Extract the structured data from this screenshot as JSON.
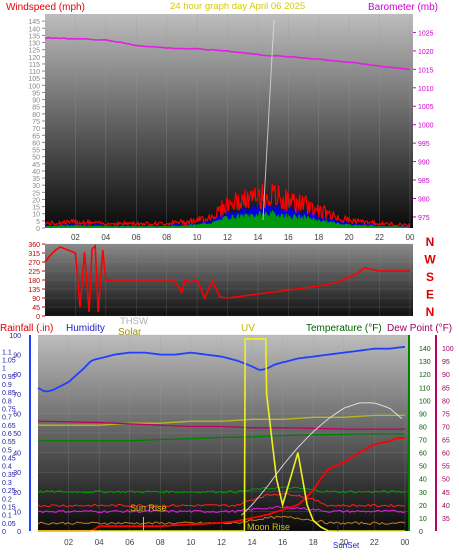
{
  "header": {
    "left_title": "Windspeed (mph)",
    "center_title": "24 hour graph day   April 06 2025",
    "right_title": "Barometer (mb)"
  },
  "bottom_header": {
    "rainfall": "Rainfall (.in)",
    "humidity": "Humidity",
    "thsw": "THSW",
    "solar": "Solar",
    "uv": "UV",
    "temperature": "Temperature (°F)",
    "dewpoint": "Dew Point (°F)"
  },
  "direction_letters": [
    "N",
    "W",
    "S",
    "E",
    "N"
  ],
  "annotations": {
    "sunrise": "Sun Rise",
    "moonrise": "Moon Rise",
    "sunset": "SunSet"
  },
  "colors": {
    "wind": "#ff0000",
    "gust_blue": "#0000ff",
    "gust_green": "#00a000",
    "barometer": "#e020e0",
    "direction": "#ff0000",
    "humidity": "#2040ff",
    "uv": "#f0f020",
    "solar": "#b8b820",
    "temperature": "#008000",
    "dewpoint": "#c00060",
    "rain": "#ff0000",
    "thsw": "#ffffff"
  },
  "chart_data": [
    {
      "type": "line",
      "id": "wind_baro",
      "title": "24 hour graph day   April 06 2025",
      "x_ticks": [
        "02",
        "04",
        "06",
        "08",
        "10",
        "12",
        "14",
        "16",
        "18",
        "20",
        "22",
        "00"
      ],
      "x_range_hours": [
        0,
        24.2
      ],
      "left_axis": {
        "label": "Windspeed (mph)",
        "ticks": [
          0,
          5,
          10,
          15,
          20,
          25,
          30,
          35,
          40,
          45,
          50,
          55,
          60,
          65,
          70,
          75,
          80,
          85,
          90,
          95,
          100,
          105,
          110,
          115,
          120,
          125,
          130,
          135,
          140,
          145
        ],
        "range": [
          0,
          150
        ]
      },
      "right_axis": {
        "label": "Barometer (mb)",
        "ticks": [
          975,
          980,
          985,
          990,
          995,
          1000,
          1005,
          1010,
          1015,
          1020,
          1025
        ],
        "range": [
          972,
          1030
        ]
      },
      "series": [
        {
          "name": "Barometer",
          "x": [
            0,
            2,
            4,
            6,
            8,
            10,
            12,
            14,
            16,
            18,
            20,
            22,
            24
          ],
          "values": [
            1023.5,
            1023.3,
            1023,
            1021.5,
            1020.8,
            1020.5,
            1020,
            1019,
            1018.4,
            1017.8,
            1016.9,
            1015.9,
            1015
          ]
        },
        {
          "name": "Wind",
          "x": [
            0,
            2,
            4,
            6,
            8,
            10,
            11,
            12,
            13,
            14,
            14.5,
            15,
            15.5,
            16,
            17,
            18,
            19,
            20,
            22,
            24
          ],
          "values": [
            3,
            4,
            3,
            3,
            3,
            5,
            8,
            16,
            18,
            20,
            22,
            21,
            20,
            18,
            16,
            12,
            8,
            5,
            3,
            2
          ]
        }
      ]
    },
    {
      "type": "line",
      "id": "direction",
      "x_range_hours": [
        0,
        24.2
      ],
      "y_ticks": [
        0,
        45,
        90,
        135,
        180,
        225,
        270,
        315,
        360
      ],
      "y_range": [
        0,
        360
      ],
      "series": [
        {
          "name": "Wind Direction",
          "x": [
            0,
            0.3,
            0.7,
            1,
            1.5,
            2,
            2.3,
            2.6,
            2.9,
            3.1,
            3.3,
            3.5,
            3.8,
            4,
            4.5,
            5.5,
            6.5,
            7.5,
            8.5,
            9,
            9.2,
            9.5,
            10,
            10.5,
            11,
            11.5,
            12,
            13,
            14,
            15,
            16,
            17,
            18,
            19,
            19.5,
            20,
            20.5,
            21,
            22,
            23,
            24
          ],
          "values": [
            270,
            300,
            330,
            345,
            330,
            315,
            45,
            320,
            20,
            335,
            350,
            20,
            330,
            180,
            175,
            175,
            175,
            175,
            175,
            120,
            180,
            170,
            180,
            90,
            175,
            95,
            90,
            100,
            110,
            120,
            130,
            140,
            150,
            165,
            175,
            195,
            210,
            240,
            225,
            225,
            225
          ]
        }
      ]
    },
    {
      "type": "line",
      "id": "climate",
      "x_ticks": [
        "02",
        "04",
        "06",
        "08",
        "10",
        "12",
        "14",
        "16",
        "18",
        "20",
        "22",
        "00"
      ],
      "x_range_hours": [
        0,
        24.2
      ],
      "humidity_axis": {
        "label": "Humidity",
        "ticks": [
          0,
          10,
          20,
          30,
          40,
          50,
          60,
          70,
          80,
          90,
          100
        ],
        "range": [
          0,
          100
        ]
      },
      "rain_axis": {
        "label": "Rainfall (.in)",
        "ticks": [
          0,
          0.05,
          0.1,
          0.15,
          0.2,
          0.25,
          0.3,
          0.35,
          0.4,
          0.45,
          0.5,
          0.55,
          0.6,
          0.65,
          0.7,
          0.75,
          0.8,
          0.85,
          0.9,
          0.95,
          1,
          1.05,
          1.1
        ],
        "range": [
          0,
          1.2
        ]
      },
      "uv_axis": {
        "ticks": [
          0,
          10,
          20,
          30,
          40,
          50,
          60,
          70,
          80,
          90,
          100,
          110,
          120,
          130,
          140
        ],
        "range": [
          0,
          150
        ]
      },
      "temp_axis": {
        "ticks": [
          35,
          40,
          45,
          50,
          55,
          60,
          65,
          70,
          75,
          80,
          85,
          90,
          95,
          100
        ],
        "range": [
          30,
          105
        ]
      },
      "series": [
        {
          "name": "Humidity",
          "x": [
            0,
            0.5,
            1,
            2,
            3,
            3.5,
            4,
            5,
            6,
            7,
            8,
            9,
            10,
            11,
            12,
            13,
            14,
            14.5,
            15,
            15.5,
            16,
            17,
            18,
            19,
            20,
            21,
            22,
            23,
            24
          ],
          "values": [
            73,
            71,
            72,
            76,
            83,
            87,
            88,
            90,
            91,
            91,
            90,
            90,
            91,
            90,
            89,
            87,
            84,
            82,
            83,
            85,
            86,
            88,
            89,
            90,
            91,
            92,
            93,
            93,
            94
          ]
        },
        {
          "name": "Temperature",
          "x": [
            0,
            2,
            4,
            6,
            8,
            10,
            12,
            14,
            16,
            18,
            20,
            22,
            24
          ],
          "values": [
            64.5,
            64.5,
            64.5,
            64.5,
            65,
            65.3,
            65.8,
            66,
            66.5,
            66.8,
            67,
            67.2,
            67.2
          ]
        },
        {
          "name": "Dew Point",
          "x": [
            0,
            2,
            4,
            6,
            8,
            10,
            12,
            14,
            16,
            18,
            20,
            22,
            24
          ],
          "values": [
            72,
            71.8,
            71.5,
            71,
            70.5,
            70,
            70,
            69.5,
            69.5,
            69.3,
            69,
            69,
            69
          ]
        },
        {
          "name": "Rain",
          "x": [
            0,
            2,
            3.5,
            4,
            6,
            8,
            10,
            12,
            13,
            14,
            15,
            16,
            17,
            17.5,
            18,
            18.5,
            19,
            20,
            21,
            22,
            23,
            23.5,
            24
          ],
          "values": [
            0,
            0,
            0,
            0.03,
            0.03,
            0.03,
            0.04,
            0.05,
            0.06,
            0.08,
            0.1,
            0.13,
            0.16,
            0.2,
            0.25,
            0.32,
            0.38,
            0.42,
            0.48,
            0.53,
            0.55,
            0.57,
            0.57
          ]
        },
        {
          "name": "UV",
          "x": [
            0,
            13.5,
            13.55,
            14.9,
            14.95,
            15.3,
            15.6,
            16,
            16.5,
            17,
            17.3,
            17.6,
            18,
            18.5,
            19,
            24
          ],
          "values": [
            0,
            0,
            147,
            147,
            105,
            70,
            40,
            20,
            40,
            60,
            40,
            20,
            8,
            3,
            0,
            0
          ]
        },
        {
          "name": "Solar",
          "x": [
            0,
            2,
            4,
            6,
            8,
            10,
            12,
            14,
            16,
            18,
            20,
            22,
            24
          ],
          "values": [
            54,
            54,
            54,
            55,
            55,
            56,
            56,
            57,
            57,
            58,
            58,
            59,
            59
          ]
        },
        {
          "name": "THSW",
          "x": [
            13.3,
            14,
            15,
            16,
            17,
            18,
            19,
            20,
            21,
            22,
            23,
            24
          ],
          "values": [
            36,
            40,
            47,
            55,
            62,
            68,
            73,
            77,
            79,
            79,
            77,
            72
          ]
        }
      ]
    }
  ]
}
